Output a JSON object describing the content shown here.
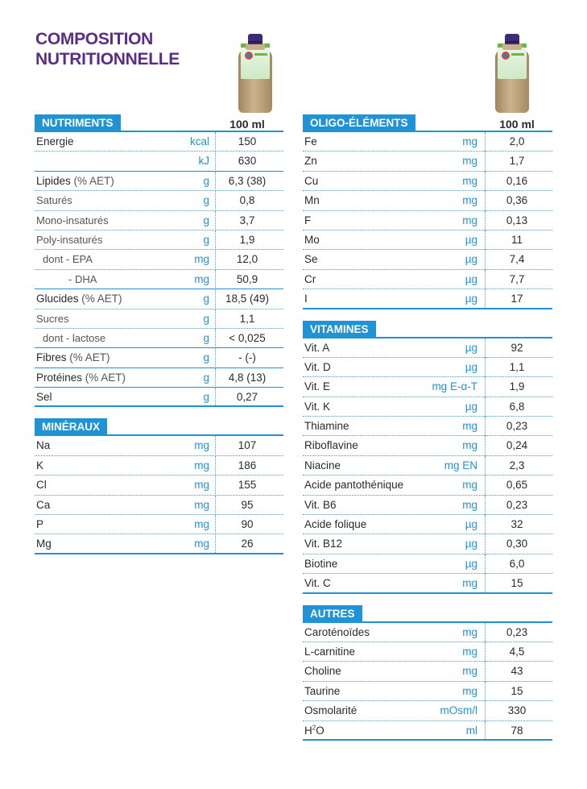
{
  "title": [
    "COMPOSITION",
    "NUTRITIONNELLE"
  ],
  "left": [
    {
      "heading": "NUTRIMENTS",
      "col_header": "100 ml",
      "rows": [
        {
          "name": "Energie",
          "unit": "kcal",
          "value": "150",
          "bold": true
        },
        {
          "name": "",
          "unit": "kJ",
          "value": "630",
          "thick": true
        },
        {
          "name": "Lipides",
          "suffix": " (% AET)",
          "unit": "g",
          "value": "6,3 (38)"
        },
        {
          "name": "Saturés",
          "unit": "g",
          "value": "0,8",
          "sub": true
        },
        {
          "name": "Mono-insaturés",
          "unit": "g",
          "value": "3,7",
          "sub": true
        },
        {
          "name": "Poly-insaturés",
          "unit": "g",
          "value": "1,9",
          "sub": true
        },
        {
          "name": "dont - EPA",
          "unit": "mg",
          "value": "12,0",
          "sub": true,
          "indent": 1
        },
        {
          "name": "- DHA",
          "unit": "mg",
          "value": "50,9",
          "sub": true,
          "indent": 2,
          "thick": true
        },
        {
          "name": "Glucides",
          "suffix": " (% AET)",
          "unit": "g",
          "value": "18,5 (49)"
        },
        {
          "name": "Sucres",
          "unit": "g",
          "value": "1,1",
          "sub": true
        },
        {
          "name": "dont - lactose",
          "unit": "g",
          "value": "< 0,025",
          "sub": true,
          "indent": 1,
          "thick": true
        },
        {
          "name": "Fibres",
          "suffix": " (% AET)",
          "unit": "g",
          "value": "- (-)",
          "thick": true
        },
        {
          "name": "Protéines",
          "suffix": " (% AET)",
          "unit": "g",
          "value": "4,8 (13)",
          "thick": true
        },
        {
          "name": "Sel",
          "unit": "g",
          "value": "0,27"
        }
      ]
    },
    {
      "heading": "MINÉRAUX",
      "col_header": "",
      "rows": [
        {
          "name": "Na",
          "unit": "mg",
          "value": "107"
        },
        {
          "name": "K",
          "unit": "mg",
          "value": "186"
        },
        {
          "name": "Cl",
          "unit": "mg",
          "value": "155"
        },
        {
          "name": "Ca",
          "unit": "mg",
          "value": "95"
        },
        {
          "name": "P",
          "unit": "mg",
          "value": "90"
        },
        {
          "name": "Mg",
          "unit": "mg",
          "value": "26"
        }
      ]
    }
  ],
  "right": [
    {
      "heading": "OLIGO-ÉLÉMENTS",
      "col_header": "100 ml",
      "rows": [
        {
          "name": "Fe",
          "unit": "mg",
          "value": "2,0"
        },
        {
          "name": "Zn",
          "unit": "mg",
          "value": "1,7"
        },
        {
          "name": "Cu",
          "unit": "mg",
          "value": "0,16"
        },
        {
          "name": "Mn",
          "unit": "mg",
          "value": "0,36"
        },
        {
          "name": "F",
          "unit": "mg",
          "value": "0,13"
        },
        {
          "name": "Mo",
          "unit": "µg",
          "value": "11"
        },
        {
          "name": "Se",
          "unit": "µg",
          "value": "7,4"
        },
        {
          "name": "Cr",
          "unit": "µg",
          "value": "7,7"
        },
        {
          "name": "I",
          "unit": "µg",
          "value": "17"
        }
      ]
    },
    {
      "heading": "VITAMINES",
      "col_header": "",
      "rows": [
        {
          "name": "Vit. A",
          "unit": "µg",
          "value": "92"
        },
        {
          "name": "Vit. D",
          "unit": "µg",
          "value": "1,1"
        },
        {
          "name": "Vit. E",
          "unit": "mg E-α-T",
          "value": "1,9"
        },
        {
          "name": "Vit. K",
          "unit": "µg",
          "value": "6,8"
        },
        {
          "name": "Thiamine",
          "unit": "mg",
          "value": "0,23"
        },
        {
          "name": "Riboflavine",
          "unit": "mg",
          "value": "0,24"
        },
        {
          "name": "Niacine",
          "unit": "mg EN",
          "value": "2,3"
        },
        {
          "name": "Acide pantothénique",
          "unit": "mg",
          "value": "0,65"
        },
        {
          "name": "Vit. B6",
          "unit": "mg",
          "value": "0,23"
        },
        {
          "name": "Acide folique",
          "unit": "µg",
          "value": "32"
        },
        {
          "name": "Vit. B12",
          "unit": "µg",
          "value": "0,30"
        },
        {
          "name": "Biotine",
          "unit": "µg",
          "value": "6,0"
        },
        {
          "name": "Vit. C",
          "unit": "mg",
          "value": "15"
        }
      ]
    },
    {
      "heading": "AUTRES",
      "col_header": "",
      "rows": [
        {
          "name": "Caroténoïdes",
          "unit": "mg",
          "value": "0,23"
        },
        {
          "name": "L-carnitine",
          "unit": "mg",
          "value": "4,5"
        },
        {
          "name": "Choline",
          "unit": "mg",
          "value": "43"
        },
        {
          "name": "Taurine",
          "unit": "mg",
          "value": "15"
        },
        {
          "name": "Osmolarité",
          "unit": "mOsm/l",
          "value": "330"
        },
        {
          "name": "H",
          "sup": "2",
          "name_after": "O",
          "unit": "ml",
          "value": "78"
        }
      ]
    }
  ],
  "colors": {
    "title": "#5a2d8a",
    "accent": "#1f93d6"
  }
}
